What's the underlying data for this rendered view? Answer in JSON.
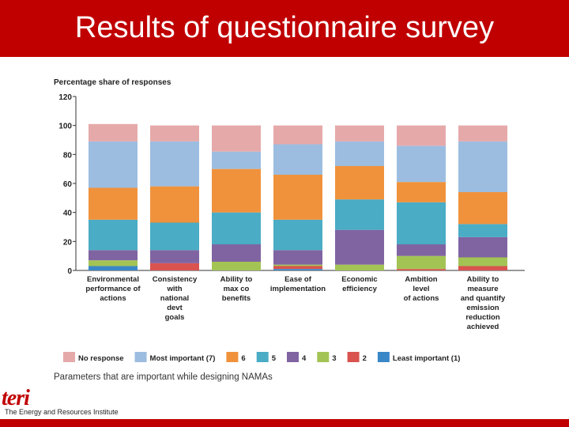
{
  "slide": {
    "title": "Results of questionnaire survey",
    "caption": "Parameters that are important while designing NAMAs",
    "logo_text": "teri",
    "logo_subtext": "The Energy and Resources Institute",
    "accent_color": "#c00000"
  },
  "chart_data": {
    "type": "bar",
    "stacked": true,
    "ylabel": "Percentage share of responses",
    "ylim": [
      0,
      120
    ],
    "yticks": [
      0,
      20,
      40,
      60,
      80,
      100,
      120
    ],
    "categories": [
      [
        "Environmental",
        "performance of",
        "actions"
      ],
      [
        "Consistency",
        "with",
        "national",
        "devt",
        "goals"
      ],
      [
        "Ability to",
        "max co",
        "benefits"
      ],
      [
        "Ease of",
        "implementation"
      ],
      [
        "Economic",
        "efficiency"
      ],
      [
        "Ambition",
        "level",
        "of actions"
      ],
      [
        "Ability to",
        "measure",
        "and quantify",
        "emission",
        "reduction",
        "achieved"
      ]
    ],
    "series": [
      {
        "name": "Least important (1)",
        "color": "#3a87c8",
        "values": [
          3,
          0,
          0,
          1,
          0,
          0,
          0
        ]
      },
      {
        "name": "2",
        "color": "#d9534f",
        "values": [
          0,
          5,
          0,
          2,
          0,
          1,
          3
        ]
      },
      {
        "name": "3",
        "color": "#a3c454",
        "values": [
          4,
          0,
          6,
          1,
          4,
          9,
          6
        ]
      },
      {
        "name": "4",
        "color": "#8064a2",
        "values": [
          7,
          9,
          12,
          10,
          24,
          8,
          14
        ]
      },
      {
        "name": "5",
        "color": "#4aacc5",
        "values": [
          21,
          19,
          22,
          21,
          21,
          29,
          9
        ]
      },
      {
        "name": "6",
        "color": "#f0923c",
        "values": [
          22,
          25,
          30,
          31,
          23,
          14,
          22
        ]
      },
      {
        "name": "Most important (7)",
        "color": "#9cbde0",
        "values": [
          32,
          31,
          12,
          21,
          17,
          25,
          35
        ]
      },
      {
        "name": "No response",
        "color": "#e6a9aa",
        "values": [
          12,
          11,
          18,
          13,
          11,
          14,
          11
        ]
      }
    ],
    "legend_position": "bottom",
    "grid": false
  }
}
